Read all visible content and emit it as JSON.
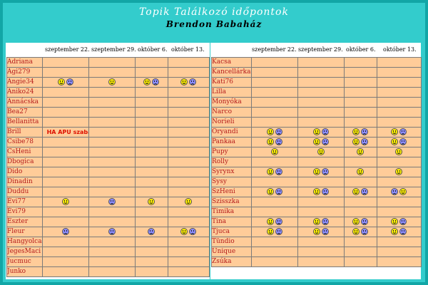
{
  "header": {
    "title": "Topik Találkozó időpontok",
    "subtitle": "Brendon Babaház"
  },
  "dates": [
    "szeptember 22.",
    "szeptember 29.",
    "október 6.",
    "október 13."
  ],
  "colors": {
    "background": "#33cccc",
    "cell": "#ffcc99",
    "name_text": "#b41c1c",
    "note_text": "#dd1100",
    "title_text": "#ffffff"
  },
  "left_table": {
    "rows": [
      {
        "name": "Adriana",
        "cells": [
          [],
          [],
          [],
          []
        ]
      },
      {
        "name": "Ági279",
        "cells": [
          [],
          [],
          [],
          []
        ]
      },
      {
        "name": "Angie34",
        "cells": [
          [
            "happy",
            "sad"
          ],
          [
            "happy"
          ],
          [
            "happy",
            "sad"
          ],
          [
            "happy",
            "sad"
          ]
        ]
      },
      {
        "name": "Aniko24",
        "cells": [
          [],
          [],
          [],
          []
        ]
      },
      {
        "name": "Annácska",
        "cells": [
          [],
          [],
          [],
          []
        ]
      },
      {
        "name": "Bea27",
        "cells": [
          [],
          [],
          [],
          []
        ]
      },
      {
        "name": "Bellanitta",
        "cells": [
          [],
          [],
          [],
          []
        ]
      },
      {
        "name": "Brill",
        "cells": [
          [],
          [],
          [],
          []
        ],
        "note": "HA APU szabadnapos akkor OK!"
      },
      {
        "name": "Csibe78",
        "cells": [
          [],
          [],
          [],
          []
        ]
      },
      {
        "name": "CsHeni",
        "cells": [
          [],
          [],
          [],
          []
        ]
      },
      {
        "name": "Dbogica",
        "cells": [
          [],
          [],
          [],
          []
        ]
      },
      {
        "name": "Dido",
        "cells": [
          [],
          [],
          [],
          []
        ]
      },
      {
        "name": "Dinadin",
        "cells": [
          [],
          [],
          [],
          []
        ]
      },
      {
        "name": "Duddu",
        "cells": [
          [],
          [],
          [],
          []
        ]
      },
      {
        "name": "Évi77",
        "cells": [
          [
            "happy"
          ],
          [
            "sad"
          ],
          [
            "happy"
          ],
          [
            "happy"
          ]
        ]
      },
      {
        "name": "Évi79",
        "cells": [
          [],
          [],
          [],
          []
        ]
      },
      {
        "name": "Eszter",
        "cells": [
          [],
          [],
          [],
          []
        ]
      },
      {
        "name": "Fleur",
        "cells": [
          [
            "sad"
          ],
          [
            "sad"
          ],
          [
            "sad"
          ],
          [
            "happy",
            "sad"
          ]
        ]
      },
      {
        "name": "Hangyolca",
        "cells": [
          [],
          [],
          [],
          []
        ]
      },
      {
        "name": "JegesMaci",
        "cells": [
          [],
          [],
          [],
          []
        ]
      },
      {
        "name": "Jucmuc",
        "cells": [
          [],
          [],
          [],
          []
        ]
      },
      {
        "name": "Junko",
        "cells": [
          [],
          [],
          [],
          []
        ]
      }
    ]
  },
  "right_table": {
    "rows": [
      {
        "name": "Kacsa",
        "cells": [
          [],
          [],
          [],
          []
        ]
      },
      {
        "name": "Kancellárka",
        "cells": [
          [],
          [],
          [],
          []
        ]
      },
      {
        "name": "Kati76",
        "cells": [
          [],
          [],
          [],
          []
        ]
      },
      {
        "name": "Lilla",
        "cells": [
          [],
          [],
          [],
          []
        ]
      },
      {
        "name": "Monyóka",
        "cells": [
          [],
          [],
          [],
          []
        ]
      },
      {
        "name": "Narco",
        "cells": [
          [],
          [],
          [],
          []
        ]
      },
      {
        "name": "Norieli",
        "cells": [
          [],
          [],
          [],
          []
        ]
      },
      {
        "name": "Oryandi",
        "cells": [
          [
            "happy",
            "sad"
          ],
          [
            "happy",
            "sad"
          ],
          [
            "happy",
            "sad"
          ],
          [
            "happy",
            "sad"
          ]
        ]
      },
      {
        "name": "Pankaa",
        "cells": [
          [
            "happy",
            "sad"
          ],
          [
            "happy",
            "sad"
          ],
          [
            "happy",
            "sad"
          ],
          [
            "happy",
            "sad"
          ]
        ]
      },
      {
        "name": "Pupy",
        "cells": [
          [
            "happy"
          ],
          [
            "happy"
          ],
          [
            "happy"
          ],
          [
            "happy"
          ]
        ]
      },
      {
        "name": "Rolly",
        "cells": [
          [],
          [],
          [],
          []
        ]
      },
      {
        "name": "Syrynx",
        "cells": [
          [
            "happy",
            "sad"
          ],
          [
            "happy",
            "sad"
          ],
          [
            "happy"
          ],
          [
            "happy"
          ]
        ]
      },
      {
        "name": "Sysy",
        "cells": [
          [],
          [],
          [],
          []
        ]
      },
      {
        "name": "SzHeni",
        "cells": [
          [
            "happy",
            "sad"
          ],
          [
            "happy",
            "sad"
          ],
          [
            "happy",
            "sad"
          ],
          [
            "sad",
            "happy"
          ]
        ]
      },
      {
        "name": "Szisszka",
        "cells": [
          [],
          [],
          [],
          []
        ]
      },
      {
        "name": "Timika",
        "cells": [
          [],
          [],
          [],
          []
        ]
      },
      {
        "name": "Tina",
        "cells": [
          [
            "happy",
            "sad"
          ],
          [
            "happy",
            "sad"
          ],
          [
            "happy",
            "sad"
          ],
          [
            "happy",
            "sad"
          ]
        ]
      },
      {
        "name": "Tjuca",
        "cells": [
          [
            "happy",
            "sad"
          ],
          [
            "happy",
            "sad"
          ],
          [
            "happy",
            "sad"
          ],
          [
            "happy",
            "sad"
          ]
        ]
      },
      {
        "name": "Tündio",
        "cells": [
          [],
          [],
          [],
          []
        ]
      },
      {
        "name": "Unique",
        "cells": [
          [],
          [],
          [],
          []
        ]
      },
      {
        "name": "Zsúka",
        "cells": [
          [],
          [],
          [],
          []
        ]
      }
    ]
  }
}
